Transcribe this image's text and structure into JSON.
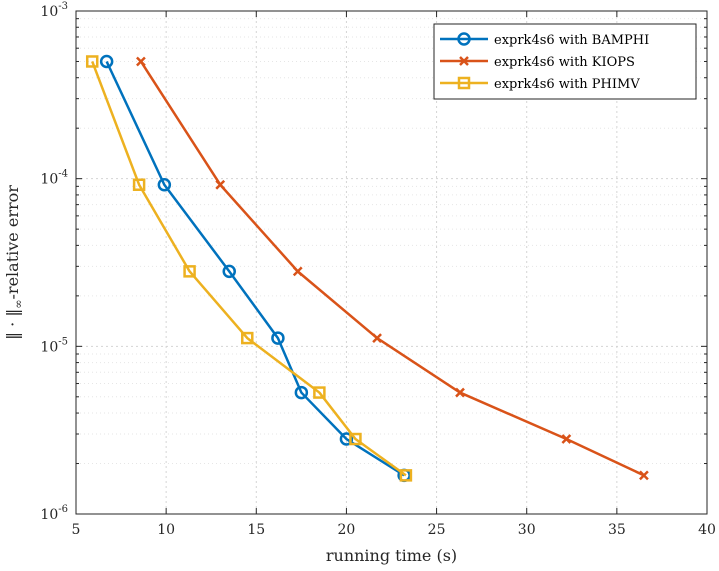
{
  "chart_data": {
    "type": "line",
    "title": "",
    "xlabel": "running time (s)",
    "ylabel_prefix": "‖ · ‖",
    "ylabel_subscript": "∞",
    "ylabel_suffix": "-relative error",
    "xscale": "linear",
    "yscale": "log",
    "xlim": [
      5,
      40
    ],
    "ylim": [
      1e-06,
      0.001
    ],
    "xticks": [
      5,
      10,
      15,
      20,
      25,
      30,
      35,
      40
    ],
    "xtick_labels": [
      "5",
      "10",
      "15",
      "20",
      "25",
      "30",
      "35",
      "40"
    ],
    "yticks": [
      1e-06,
      1e-05,
      0.0001,
      0.001
    ],
    "ytick_base": "10",
    "ytick_exponents": [
      "-6",
      "-5",
      "-4",
      "-3"
    ],
    "grid": true,
    "legend_position": "top-right",
    "series": [
      {
        "name": "exprk4s6 with BAMPHI",
        "color": "#0072BD",
        "marker": "circle",
        "x": [
          6.7,
          9.9,
          13.5,
          16.2,
          17.5,
          20.0,
          23.2
        ],
        "y": [
          0.0005,
          9.2e-05,
          2.8e-05,
          1.12e-05,
          5.3e-06,
          2.8e-06,
          1.7e-06
        ]
      },
      {
        "name": "exprk4s6 with KIOPS",
        "color": "#D95319",
        "marker": "x",
        "x": [
          8.6,
          13.0,
          17.3,
          21.7,
          26.3,
          32.2,
          36.5
        ],
        "y": [
          0.0005,
          9.2e-05,
          2.8e-05,
          1.12e-05,
          5.3e-06,
          2.8e-06,
          1.7e-06
        ]
      },
      {
        "name": "exprk4s6 with PHIMV",
        "color": "#EDB120",
        "marker": "square",
        "x": [
          5.9,
          8.5,
          11.3,
          14.5,
          18.5,
          20.5,
          23.3
        ],
        "y": [
          0.0005,
          9.2e-05,
          2.8e-05,
          1.12e-05,
          5.3e-06,
          2.8e-06,
          1.7e-06
        ]
      }
    ]
  }
}
